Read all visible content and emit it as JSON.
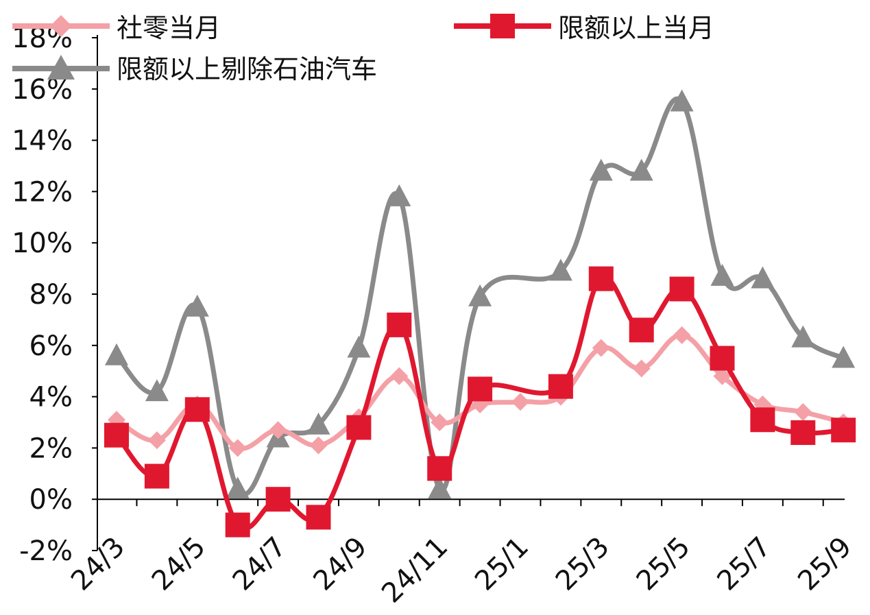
{
  "chart_data": {
    "type": "line",
    "title": "",
    "xlabel": "",
    "ylabel": "",
    "x": [
      "24/3",
      "24/4",
      "24/5",
      "24/6",
      "24/7",
      "24/8",
      "24/9",
      "24/10",
      "24/11",
      "24/12",
      "25/1",
      "25/2",
      "25/3",
      "25/4",
      "25/5",
      "25/6",
      "25/7",
      "25/8",
      "25/9"
    ],
    "x_tick_labels": [
      "24/3",
      "24/5",
      "24/7",
      "24/9",
      "24/11",
      "25/1",
      "25/3",
      "25/5",
      "25/7",
      "25/9"
    ],
    "ylim": [
      -2,
      18
    ],
    "y_tick_labels": [
      "-2%",
      "0%",
      "2%",
      "4%",
      "6%",
      "8%",
      "10%",
      "12%",
      "14%",
      "16%",
      "18%"
    ],
    "grid": false,
    "legend_position": "top",
    "series": [
      {
        "name": "社零当月",
        "color": "#f4a0a7",
        "marker": "diamond",
        "values": [
          3.1,
          2.3,
          3.7,
          2.0,
          2.7,
          2.1,
          3.2,
          4.8,
          3.0,
          3.7,
          3.8,
          4.0,
          5.9,
          5.1,
          6.4,
          4.8,
          3.7,
          3.4,
          3.0
        ]
      },
      {
        "name": "限额以上当月",
        "color": "#e0182f",
        "marker": "square",
        "values": [
          2.5,
          0.9,
          3.5,
          -1.0,
          0.0,
          -0.7,
          2.8,
          6.8,
          1.2,
          4.3,
          null,
          4.4,
          8.6,
          6.6,
          8.2,
          5.5,
          3.1,
          2.6,
          2.7
        ]
      },
      {
        "name": "限额以上剔除石油汽车",
        "color": "#8a8a8a",
        "marker": "triangle",
        "values": [
          5.6,
          4.2,
          7.5,
          0.4,
          2.4,
          2.9,
          5.9,
          11.8,
          0.4,
          7.9,
          null,
          8.9,
          12.8,
          12.8,
          15.5,
          8.7,
          8.6,
          6.3,
          5.5
        ]
      }
    ]
  }
}
